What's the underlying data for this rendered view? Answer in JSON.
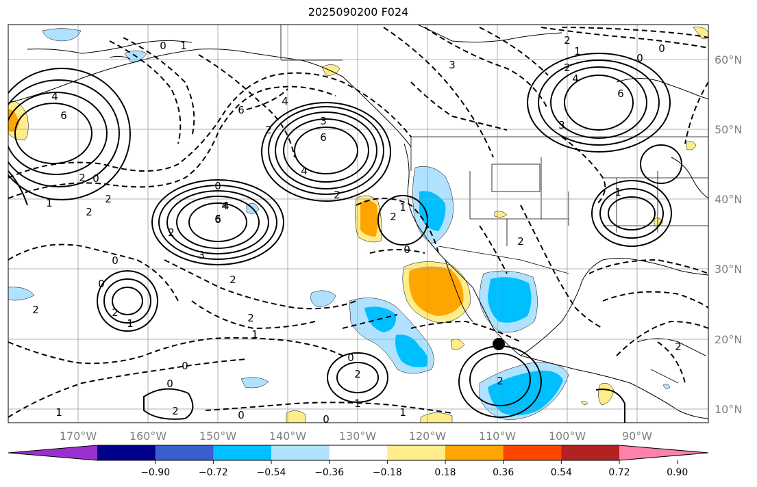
{
  "title": "2025090200 F024",
  "lon_labels": [
    "170°W",
    "160°W",
    "150°W",
    "140°W",
    "130°W",
    "120°W",
    "110°W",
    "100°W",
    "90°W"
  ],
  "lat_labels": [
    "60°N",
    "50°N",
    "40°N",
    "30°N",
    "20°N",
    "10°N"
  ],
  "colorbar": {
    "colors": [
      "#9932cc",
      "#00008b",
      "#3a5fcd",
      "#00bfff",
      "#b0e2ff",
      "#ffffff",
      "#ffec8b",
      "#ffa500",
      "#ff4500",
      "#b22222",
      "#ff82ab"
    ],
    "tick_labels": [
      "−0.90",
      "−0.72",
      "−0.54",
      "−0.36",
      "−0.18",
      "0.18",
      "0.36",
      "0.54",
      "0.72",
      "0.90"
    ]
  },
  "contour_labels": [
    "4",
    "6",
    "2",
    "0",
    "1",
    "2",
    "0",
    "1",
    "2",
    "0",
    "3",
    "6",
    "4",
    "2",
    "4",
    "6",
    "2",
    "6",
    "4",
    "2",
    "0",
    "1",
    "2",
    "4",
    "6",
    "3",
    "2",
    "0",
    "2",
    "2",
    "1",
    "0",
    "2",
    "1",
    "0",
    "2",
    "1",
    "0",
    "2",
    "3",
    "2",
    "4",
    "6",
    "1",
    "0",
    "3",
    "2",
    "0",
    "1",
    "2",
    "2",
    "0",
    "2",
    "1",
    "0",
    "0",
    "1"
  ],
  "marker": {
    "lon": "110°W",
    "lat": "19°N"
  }
}
